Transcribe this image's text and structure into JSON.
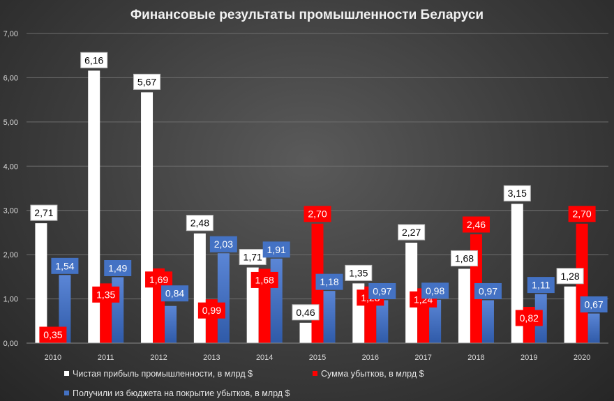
{
  "chart_data": {
    "type": "bar",
    "title": "Финансовые результаты промышленности Беларуси",
    "categories": [
      "2010",
      "2011",
      "2012",
      "2013",
      "2014",
      "2015",
      "2016",
      "2017",
      "2018",
      "2019",
      "2020"
    ],
    "ylim": [
      0,
      7
    ],
    "yticks": [
      "0,00",
      "1,00",
      "2,00",
      "3,00",
      "4,00",
      "5,00",
      "6,00",
      "7,00"
    ],
    "grid": true,
    "legend_position": "bottom",
    "series": [
      {
        "name": "Чистая прибыль промышленности, в млрд $",
        "color": "#ffffff",
        "values": [
          2.71,
          6.16,
          5.67,
          2.48,
          1.71,
          0.46,
          1.35,
          2.27,
          1.68,
          3.15,
          1.28
        ],
        "labels": [
          "2,71",
          "6,16",
          "5,67",
          "2,48",
          "1,71",
          "0,46",
          "1,35",
          "2,27",
          "1,68",
          "3,15",
          "1,28"
        ]
      },
      {
        "name": "Сумма убытков, в млрд $",
        "color": "#ff0000",
        "values": [
          0.35,
          1.35,
          1.69,
          0.99,
          1.68,
          2.7,
          1.28,
          1.24,
          2.46,
          0.82,
          2.7
        ],
        "labels": [
          "0,35",
          "1,35",
          "1,69",
          "0,99",
          "1,68",
          "2,70",
          "1,28",
          "1,24",
          "2,46",
          "0,82",
          "2,70"
        ]
      },
      {
        "name": "Получили из бюджета на покрытие убытков, в млрд $",
        "color": "#4472c4",
        "values": [
          1.54,
          1.49,
          0.84,
          2.03,
          1.91,
          1.18,
          0.97,
          0.98,
          0.97,
          1.11,
          0.67
        ],
        "labels": [
          "1,54",
          "1,49",
          "0,84",
          "2,03",
          "1,91",
          "1,18",
          "0,97",
          "0,98",
          "0,97",
          "1,11",
          "0,67"
        ]
      }
    ]
  }
}
